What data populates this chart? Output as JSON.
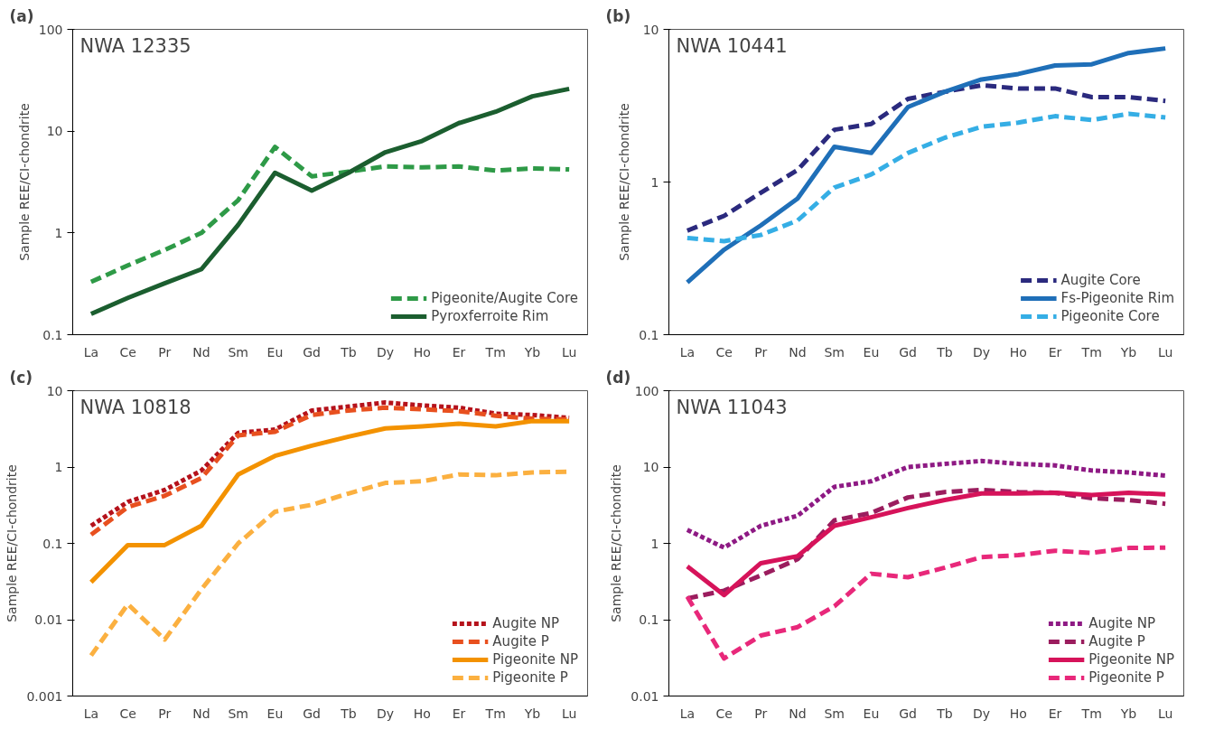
{
  "chart_data": [
    {
      "type": "line",
      "title": "(a)",
      "annotations": [
        "NWA 12335"
      ],
      "ylabel": "Sample REE/CI-chondrite",
      "log": true,
      "grid": false,
      "legend": "bottom right",
      "categories": [
        "La",
        "Ce",
        "Pr",
        "Nd",
        "Sm",
        "Eu",
        "Gd",
        "Tb",
        "Dy",
        "Ho",
        "Er",
        "Tm",
        "Yb",
        "Lu"
      ],
      "ylim": [
        0.1,
        100
      ],
      "yticks": [
        0.1,
        1,
        10,
        100
      ],
      "series": [
        {
          "name": "Pigeonite/Augite Core",
          "color": "#2e9a47",
          "line_style": "dashed",
          "values": [
            0.33,
            0.48,
            0.68,
            1.0,
            2.1,
            7.0,
            3.6,
            4.0,
            4.5,
            4.4,
            4.5,
            4.1,
            4.3,
            4.2
          ]
        },
        {
          "name": "Pyroxferroite Rim",
          "color": "#1b5e2f",
          "line_style": "solid",
          "values": [
            0.16,
            0.23,
            0.32,
            0.44,
            1.2,
            3.9,
            2.6,
            3.9,
            6.2,
            8.0,
            12,
            15.5,
            22,
            26
          ]
        }
      ]
    },
    {
      "type": "line",
      "title": "(b)",
      "annotations": [
        "NWA 10441"
      ],
      "ylabel": "Sample REE/CI-chondrite",
      "log": true,
      "grid": false,
      "legend": "bottom right",
      "categories": [
        "La",
        "Ce",
        "Pr",
        "Nd",
        "Sm",
        "Eu",
        "Gd",
        "Tb",
        "Dy",
        "Ho",
        "Er",
        "Tm",
        "Yb",
        "Lu"
      ],
      "ylim": [
        0.1,
        10
      ],
      "yticks": [
        0.1,
        1,
        10
      ],
      "series": [
        {
          "name": "Augite Core",
          "color": "#2b2a7e",
          "line_style": "dashed",
          "values": [
            0.48,
            0.6,
            0.85,
            1.2,
            2.2,
            2.4,
            3.5,
            3.9,
            4.3,
            4.1,
            4.1,
            3.6,
            3.6,
            3.4
          ]
        },
        {
          "name": "Fs-Pigeonite Rim",
          "color": "#1f6fb8",
          "line_style": "solid",
          "values": [
            0.22,
            0.36,
            0.52,
            0.78,
            1.7,
            1.55,
            3.1,
            3.9,
            4.7,
            5.1,
            5.8,
            5.9,
            7.0,
            7.5
          ]
        },
        {
          "name": "Pigeonite Core",
          "color": "#35aee5",
          "line_style": "dashed",
          "values": [
            0.43,
            0.41,
            0.45,
            0.56,
            0.92,
            1.12,
            1.55,
            1.95,
            2.3,
            2.45,
            2.7,
            2.55,
            2.8,
            2.65
          ]
        }
      ]
    },
    {
      "type": "line",
      "title": "(c)",
      "annotations": [
        "NWA 10818"
      ],
      "ylabel": "Sample REE/CI-chondrite",
      "log": true,
      "grid": false,
      "legend": "bottom right",
      "categories": [
        "La",
        "Ce",
        "Pr",
        "Nd",
        "Sm",
        "Eu",
        "Gd",
        "Tb",
        "Dy",
        "Ho",
        "Er",
        "Tm",
        "Yb",
        "Lu"
      ],
      "ylim": [
        0.001,
        10
      ],
      "yticks": [
        0.001,
        0.01,
        0.1,
        1,
        10
      ],
      "series": [
        {
          "name": "Augite NP",
          "color": "#b5121b",
          "line_style": "dotted",
          "values": [
            0.17,
            0.35,
            0.5,
            0.9,
            2.8,
            3.1,
            5.5,
            6.2,
            7.0,
            6.4,
            6.0,
            5.0,
            4.8,
            4.4
          ]
        },
        {
          "name": "Augite P",
          "color": "#e8501f",
          "line_style": "dashed",
          "values": [
            0.13,
            0.3,
            0.42,
            0.72,
            2.6,
            2.9,
            4.8,
            5.5,
            6.0,
            5.7,
            5.4,
            4.7,
            4.3,
            4.2
          ]
        },
        {
          "name": "Pigeonite NP",
          "color": "#f39200",
          "line_style": "solid",
          "values": [
            0.031,
            0.095,
            0.095,
            0.17,
            0.8,
            1.4,
            1.9,
            2.5,
            3.2,
            3.4,
            3.7,
            3.4,
            4.0,
            4.0
          ]
        },
        {
          "name": "Pigeonite P",
          "color": "#fbb040",
          "line_style": "dashed",
          "values": [
            0.0034,
            0.016,
            0.0055,
            0.025,
            0.1,
            0.26,
            0.32,
            0.45,
            0.62,
            0.65,
            0.8,
            0.78,
            0.85,
            0.87
          ]
        }
      ]
    },
    {
      "type": "line",
      "title": "(d)",
      "annotations": [
        "NWA 11043"
      ],
      "ylabel": "Sample REE/CI-chondrite",
      "log": true,
      "grid": false,
      "legend": "bottom right",
      "categories": [
        "La",
        "Ce",
        "Pr",
        "Nd",
        "Sm",
        "Eu",
        "Gd",
        "Tb",
        "Dy",
        "Ho",
        "Er",
        "Tm",
        "Yb",
        "Lu"
      ],
      "ylim": [
        0.01,
        100
      ],
      "yticks": [
        0.01,
        0.1,
        1,
        10,
        100
      ],
      "series": [
        {
          "name": "Augite NP",
          "color": "#8e1a84",
          "line_style": "dotted",
          "values": [
            1.5,
            0.88,
            1.7,
            2.3,
            5.5,
            6.5,
            10,
            11,
            12,
            11,
            10.5,
            9,
            8.5,
            7.7
          ]
        },
        {
          "name": "Augite P",
          "color": "#9b1d5e",
          "line_style": "dashed",
          "values": [
            0.19,
            0.24,
            0.38,
            0.62,
            2.0,
            2.5,
            4.0,
            4.7,
            5.0,
            4.7,
            4.6,
            3.9,
            3.7,
            3.3
          ]
        },
        {
          "name": "Pigeonite NP",
          "color": "#d6135a",
          "line_style": "solid",
          "values": [
            0.5,
            0.21,
            0.55,
            0.68,
            1.7,
            2.2,
            2.9,
            3.7,
            4.5,
            4.5,
            4.6,
            4.3,
            4.6,
            4.4
          ]
        },
        {
          "name": "Pigeonite P",
          "color": "#e8287a",
          "line_style": "dashed",
          "values": [
            0.2,
            0.031,
            0.062,
            0.08,
            0.15,
            0.4,
            0.36,
            0.48,
            0.66,
            0.7,
            0.8,
            0.75,
            0.87,
            0.88
          ]
        }
      ]
    }
  ]
}
